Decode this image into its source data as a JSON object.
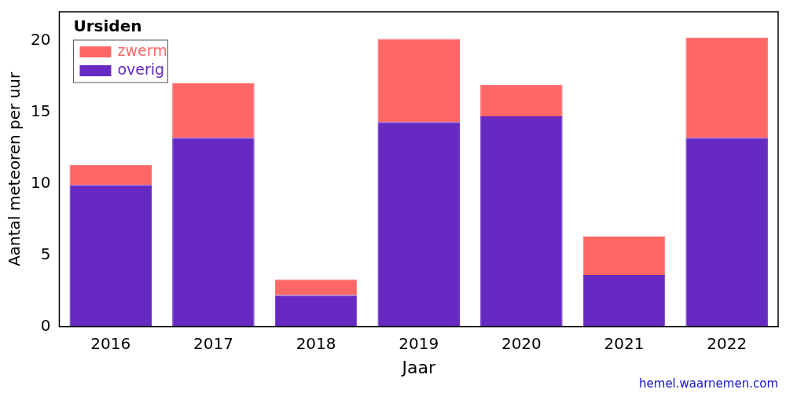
{
  "chart_data": {
    "type": "bar",
    "title": "Ursiden",
    "x_label": "Jaar",
    "y_label": "Aantal meteoren per uur",
    "annotation": "hemel.waarnemen.com",
    "categories": [
      "2016",
      "2017",
      "2018",
      "2019",
      "2020",
      "2021",
      "2022"
    ],
    "series": [
      {
        "name": "zwerm",
        "color": "#ff6666",
        "values": [
          1.4,
          3.8,
          1.1,
          5.8,
          2.2,
          2.7,
          7.0
        ]
      },
      {
        "name": "overig",
        "color": "#6629c2",
        "values": [
          9.9,
          13.2,
          2.2,
          14.3,
          14.7,
          3.6,
          13.2
        ]
      }
    ],
    "stacked": true,
    "legend": "upper left",
    "grid": false,
    "ylim": [
      0,
      22
    ],
    "yticks": [
      0,
      5,
      10,
      15,
      20
    ]
  }
}
